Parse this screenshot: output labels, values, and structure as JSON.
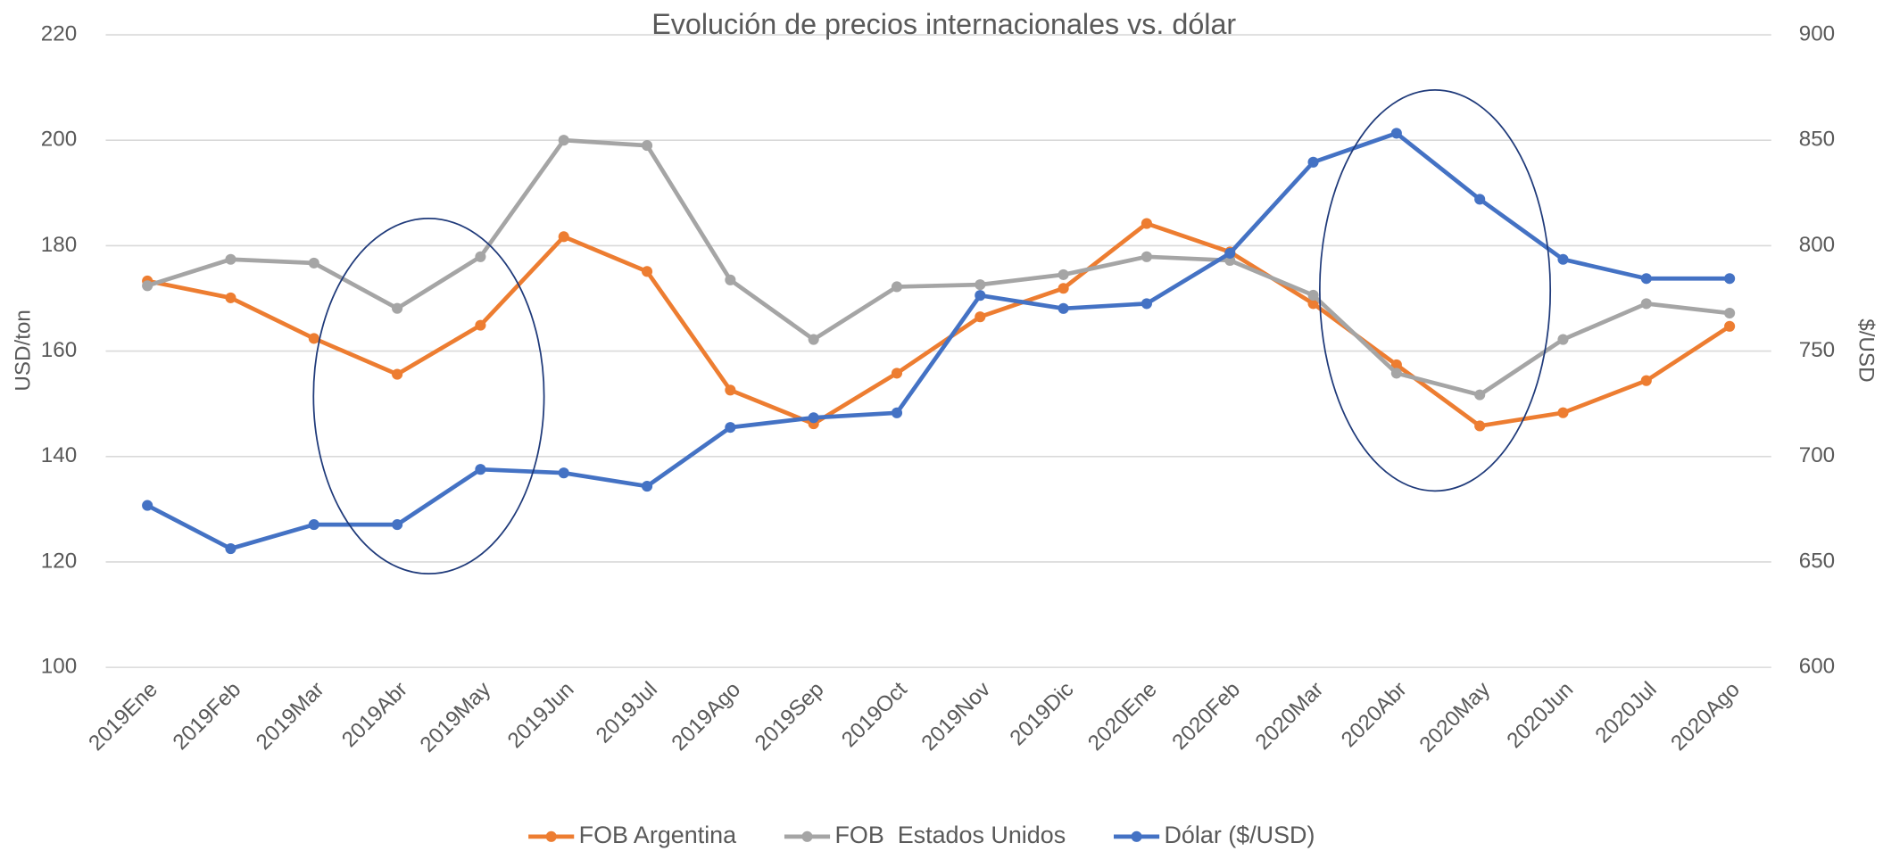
{
  "chart_data": {
    "type": "line",
    "title": "Evolución de precios internacionales vs. dólar",
    "ylabel": "USD/ton",
    "y2label": "$/USD",
    "categories": [
      "2019Ene",
      "2019Feb",
      "2019Mar",
      "2019Abr",
      "2019May",
      "2019Jun",
      "2019Jul",
      "2019Ago",
      "2019Sep",
      "2019Oct",
      "2019Nov",
      "2019Dic",
      "2020Ene",
      "2020Feb",
      "2020Mar",
      "2020Abr",
      "2020May",
      "2020Jun",
      "2020Jul",
      "2020Ago"
    ],
    "ylim": [
      100,
      220
    ],
    "yticks": [
      100,
      120,
      140,
      160,
      180,
      200,
      220
    ],
    "y2lim": [
      600,
      900
    ],
    "y2ticks": [
      600,
      650,
      700,
      750,
      800,
      850,
      900
    ],
    "grid": true,
    "legend": "bottom",
    "series": [
      {
        "name": "FOB Argentina",
        "color": "#ED7D31",
        "values": [
          173.3,
          170.1,
          162.4,
          155.6,
          164.9,
          181.7,
          175.1,
          152.6,
          146.2,
          155.8,
          166.5,
          171.9,
          184.2,
          178.8,
          169.0,
          157.4,
          145.8,
          148.3,
          154.4,
          164.7
        ]
      },
      {
        "name": "FOB  Estados Unidos",
        "color": "#A5A5A5",
        "values": [
          172.4,
          177.4,
          176.7,
          168.1,
          177.9,
          200,
          199,
          173.5,
          162.2,
          172.2,
          172.6,
          174.5,
          177.9,
          177.2,
          170.6,
          155.8,
          151.7,
          162.2,
          169.0,
          167.2
        ]
      },
      {
        "name": "Dólar ($/USD)",
        "color": "#4472C4",
        "axis": "y2",
        "values": [
          676.8,
          656.3,
          667.7,
          667.7,
          693.9,
          692.2,
          685.9,
          713.8,
          718.4,
          720.7,
          776.4,
          770.2,
          772.5,
          796.4,
          839.6,
          853.3,
          822.0,
          793.5,
          784.4,
          784.4
        ]
      }
    ]
  }
}
